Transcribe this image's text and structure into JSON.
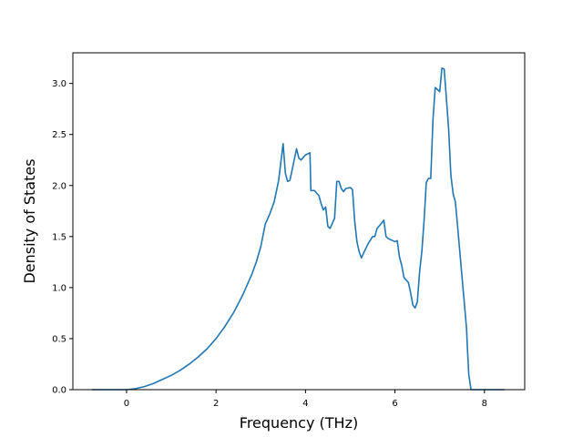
{
  "chart_data": {
    "type": "line",
    "title": "",
    "xlabel": "Frequency (THz)",
    "ylabel": "Density of States",
    "xlim": [
      -1.2,
      8.9
    ],
    "ylim": [
      0,
      3.3
    ],
    "xticks": [
      0,
      2,
      4,
      6,
      8
    ],
    "yticks": [
      0.0,
      0.5,
      1.0,
      1.5,
      2.0,
      2.5,
      3.0
    ],
    "xtick_labels": [
      "0",
      "2",
      "4",
      "6",
      "8"
    ],
    "ytick_labels": [
      "0.0",
      "0.5",
      "1.0",
      "1.5",
      "2.0",
      "2.5",
      "3.0"
    ],
    "grid": false,
    "legend": "none",
    "line_color": "#1f77b4",
    "series": [
      {
        "x": [
          -0.78,
          -0.5,
          -0.2,
          0.0,
          0.2,
          0.4,
          0.6,
          0.8,
          1.0,
          1.2,
          1.4,
          1.6,
          1.8,
          2.0,
          2.2,
          2.4,
          2.6,
          2.8,
          2.9,
          3.0,
          3.1,
          3.2,
          3.25,
          3.3,
          3.4,
          3.5,
          3.55,
          3.6,
          3.65,
          3.7,
          3.8,
          3.85,
          3.9,
          4.0,
          4.1,
          4.12,
          4.2,
          4.3,
          4.35,
          4.4,
          4.45,
          4.5,
          4.55,
          4.6,
          4.65,
          4.7,
          4.75,
          4.8,
          4.85,
          4.9,
          5.0,
          5.05,
          5.1,
          5.15,
          5.2,
          5.25,
          5.3,
          5.4,
          5.5,
          5.55,
          5.6,
          5.7,
          5.75,
          5.8,
          5.85,
          5.9,
          6.0,
          6.05,
          6.1,
          6.15,
          6.2,
          6.3,
          6.35,
          6.4,
          6.45,
          6.5,
          6.55,
          6.6,
          6.65,
          6.7,
          6.75,
          6.8,
          6.85,
          6.9,
          6.95,
          7.0,
          7.05,
          7.1,
          7.15,
          7.2,
          7.25,
          7.3,
          7.35,
          7.4,
          7.45,
          7.5,
          7.55,
          7.6,
          7.62,
          7.65,
          7.7,
          8.0,
          8.45
        ],
        "y": [
          0.0,
          0.0,
          0.0,
          0.0,
          0.01,
          0.03,
          0.06,
          0.1,
          0.14,
          0.19,
          0.25,
          0.32,
          0.4,
          0.5,
          0.62,
          0.76,
          0.93,
          1.13,
          1.25,
          1.4,
          1.62,
          1.72,
          1.78,
          1.84,
          2.05,
          2.41,
          2.12,
          2.04,
          2.05,
          2.15,
          2.36,
          2.27,
          2.25,
          2.3,
          2.32,
          1.95,
          1.95,
          1.9,
          1.82,
          1.76,
          1.79,
          1.6,
          1.58,
          1.63,
          1.68,
          2.04,
          2.04,
          1.97,
          1.94,
          1.97,
          1.98,
          1.96,
          1.65,
          1.45,
          1.35,
          1.29,
          1.34,
          1.43,
          1.5,
          1.5,
          1.58,
          1.63,
          1.66,
          1.5,
          1.48,
          1.47,
          1.45,
          1.46,
          1.3,
          1.22,
          1.1,
          1.05,
          0.95,
          0.83,
          0.8,
          0.86,
          1.15,
          1.35,
          1.65,
          2.03,
          2.07,
          2.07,
          2.65,
          2.96,
          2.94,
          2.92,
          3.15,
          3.14,
          2.85,
          2.55,
          2.1,
          1.92,
          1.84,
          1.6,
          1.35,
          1.1,
          0.85,
          0.6,
          0.4,
          0.15,
          0.0,
          0.0,
          0.0
        ]
      }
    ]
  }
}
